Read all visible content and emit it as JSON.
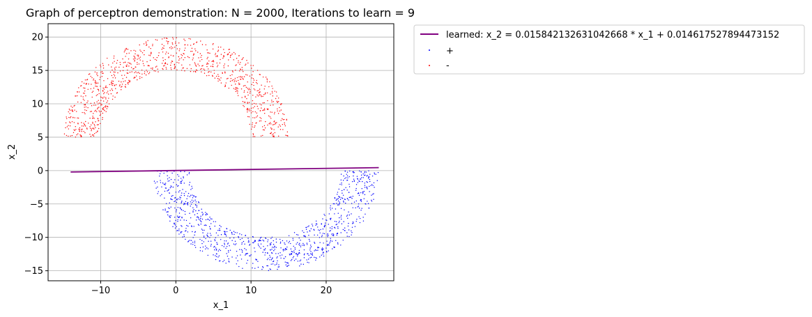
{
  "chart_data": {
    "type": "scatter",
    "title": "Graph of perceptron demonstration: N = 2000, Iterations to learn = 9",
    "xlabel": "x_1",
    "ylabel": "x_2",
    "xlim": [
      -17,
      29
    ],
    "ylim": [
      -16.5,
      22
    ],
    "xticks": [
      -10,
      0,
      10,
      20
    ],
    "xtick_labels": [
      "−10",
      "0",
      "10",
      "20"
    ],
    "yticks": [
      -15,
      -10,
      -5,
      0,
      5,
      10,
      15,
      20
    ],
    "ytick_labels": [
      "−15",
      "−10",
      "−5",
      "0",
      "5",
      "10",
      "15",
      "20"
    ],
    "grid": true,
    "legend_position": "outside-upper-right",
    "line": {
      "name": "learned: x_2 = 0.015842132631042668 * x_1 + 0.014617527894473152",
      "slope": 0.015842132631042668,
      "intercept": 0.014617527894473152,
      "x_range": [
        -14,
        27
      ],
      "color": "#800080"
    },
    "series": [
      {
        "name": "+",
        "color": "#0000ff",
        "count": 1000,
        "shape": "lower half-ring",
        "center": [
          12,
          0
        ],
        "inner_radius": 10,
        "outer_radius": 15
      },
      {
        "name": "-",
        "color": "#ff0000",
        "count": 1000,
        "shape": "upper half-ring",
        "center": [
          0,
          5
        ],
        "inner_radius": 10,
        "outer_radius": 15
      }
    ]
  }
}
